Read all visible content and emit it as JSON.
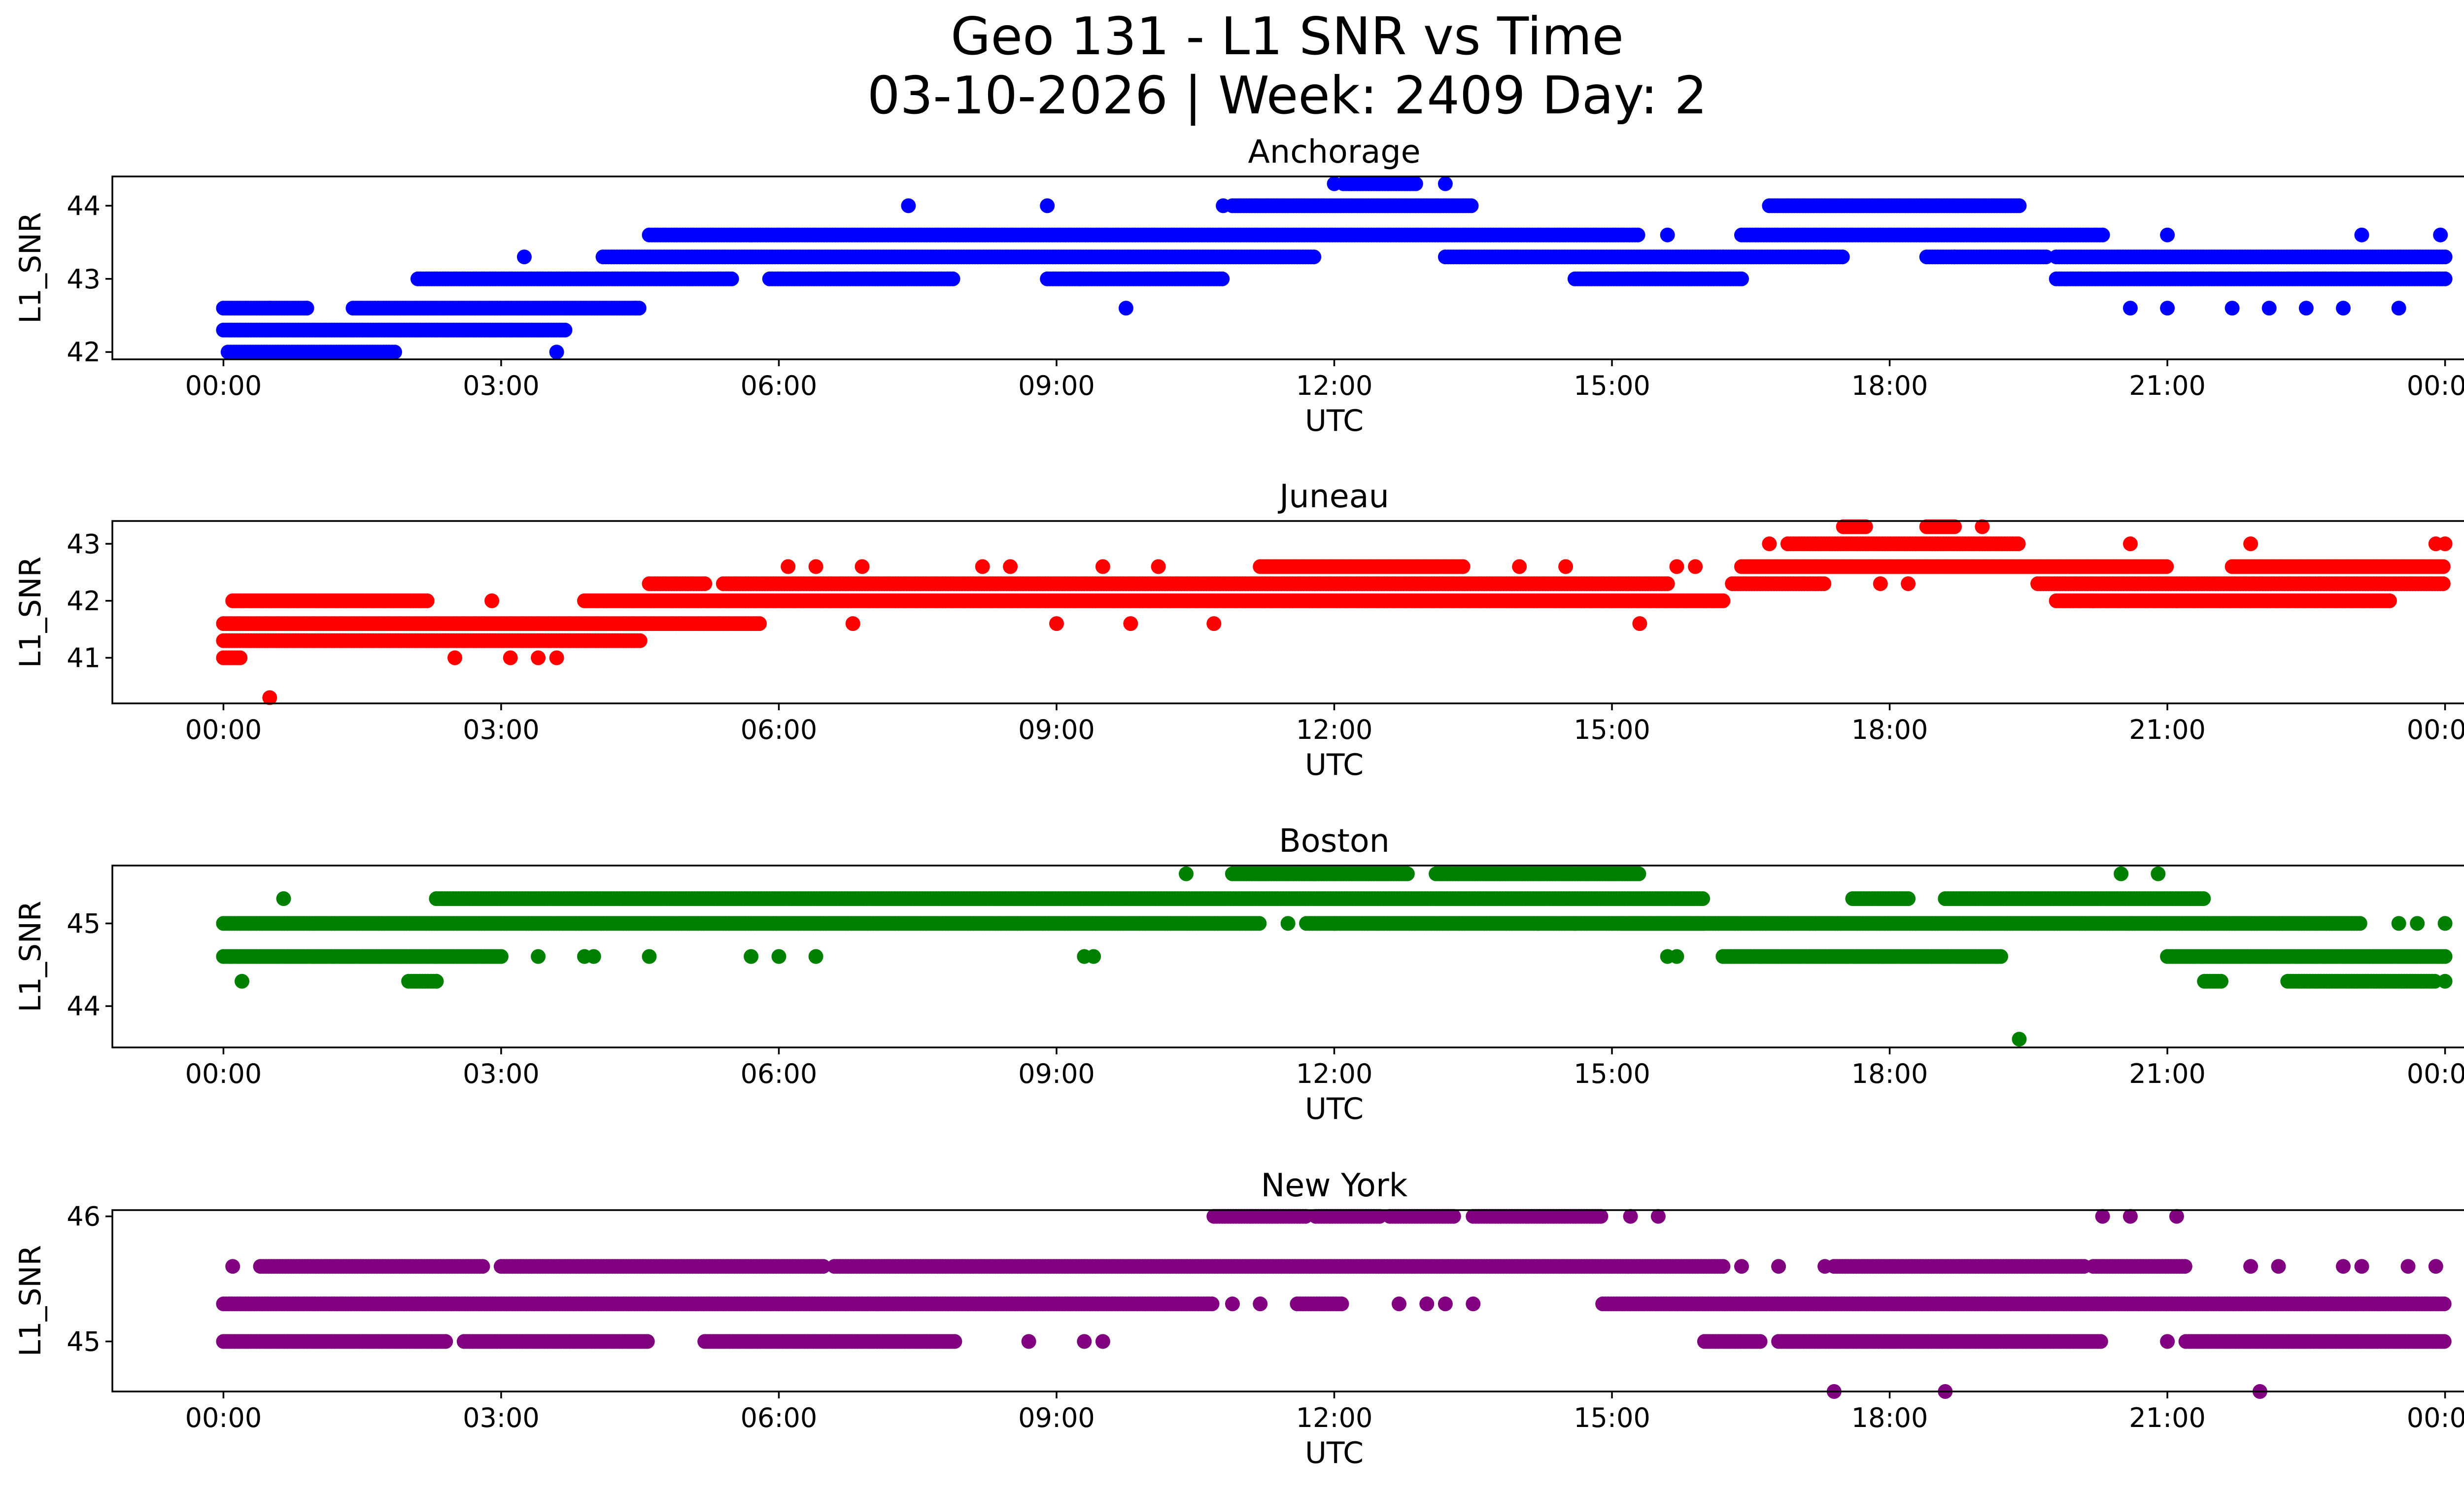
{
  "figure": {
    "title_line1": "Geo 131 - L1 SNR vs Time",
    "title_line2": "03-10-2026 | Week: 2409 Day: 2"
  },
  "chart_data": [
    {
      "type": "scatter",
      "title": "Anchorage",
      "xlabel": "UTC",
      "ylabel": "L1_SNR",
      "color": "#0000ff",
      "xlim": [
        -1.2,
        25.2
      ],
      "ylim": [
        41.9,
        44.4
      ],
      "x_ticks": [
        0,
        3,
        6,
        9,
        12,
        15,
        18,
        21,
        24
      ],
      "x_tick_labels": [
        "00:00",
        "03:00",
        "06:00",
        "09:00",
        "12:00",
        "15:00",
        "18:00",
        "21:00",
        "00:00"
      ],
      "y_ticks": [
        42,
        43,
        44
      ],
      "y_tick_labels": [
        "42",
        "43",
        "44"
      ],
      "bands": [
        {
          "y": 42.0,
          "ranges": [
            [
              0.05,
              1.85
            ]
          ]
        },
        {
          "y": 42.3,
          "ranges": [
            [
              0,
              3.7
            ]
          ]
        },
        {
          "y": 42.6,
          "ranges": [
            [
              0,
              0.9
            ],
            [
              1.4,
              4.5
            ]
          ]
        },
        {
          "y": 43.0,
          "ranges": [
            [
              2.1,
              5.5
            ],
            [
              5.9,
              7.9
            ],
            [
              8.9,
              10.8
            ],
            [
              14.6,
              16.4
            ],
            [
              19.8,
              24.0
            ]
          ]
        },
        {
          "y": 43.3,
          "ranges": [
            [
              4.1,
              11.8
            ],
            [
              13.2,
              17.5
            ],
            [
              18.4,
              19.7
            ],
            [
              19.8,
              24.0
            ]
          ]
        },
        {
          "y": 43.6,
          "ranges": [
            [
              4.6,
              15.3
            ],
            [
              16.4,
              20.3
            ]
          ]
        },
        {
          "y": 44.0,
          "ranges": [
            [
              10.9,
              13.5
            ],
            [
              16.7,
              19.4
            ]
          ]
        },
        {
          "y": 44.3,
          "ranges": [
            [
              12.1,
              12.9
            ]
          ]
        }
      ],
      "points": [
        [
          0.5,
          42.6
        ],
        [
          0.9,
          42.6
        ],
        [
          3.25,
          43.3
        ],
        [
          3.6,
          42.0
        ],
        [
          4.45,
          42.6
        ],
        [
          7.4,
          44.0
        ],
        [
          8.9,
          44.0
        ],
        [
          9.25,
          43.0
        ],
        [
          9.75,
          42.6
        ],
        [
          10.8,
          44.0
        ],
        [
          12.0,
          44.3
        ],
        [
          13.2,
          44.3
        ],
        [
          20.6,
          42.6
        ],
        [
          21.0,
          42.6
        ],
        [
          21.0,
          43.6
        ],
        [
          22.1,
          42.6
        ],
        [
          23.1,
          43.6
        ],
        [
          23.5,
          42.6
        ],
        [
          23.95,
          43.6
        ],
        [
          16.2,
          43.3
        ],
        [
          15.6,
          43.6
        ],
        [
          17.3,
          43.3
        ],
        [
          18.7,
          43.3
        ],
        [
          21.7,
          42.6
        ],
        [
          22.5,
          42.6
        ],
        [
          22.9,
          42.6
        ]
      ]
    },
    {
      "type": "scatter",
      "title": "Juneau",
      "xlabel": "UTC",
      "ylabel": "L1_SNR",
      "color": "#ff0000",
      "xlim": [
        -1.2,
        25.2
      ],
      "ylim": [
        40.2,
        43.4
      ],
      "x_ticks": [
        0,
        3,
        6,
        9,
        12,
        15,
        18,
        21,
        24
      ],
      "x_tick_labels": [
        "00:00",
        "03:00",
        "06:00",
        "09:00",
        "12:00",
        "15:00",
        "18:00",
        "21:00",
        "00:00"
      ],
      "y_ticks": [
        41,
        42,
        43
      ],
      "y_tick_labels": [
        "41",
        "42",
        "43"
      ],
      "bands": [
        {
          "y": 41.0,
          "ranges": [
            [
              0,
              0.2
            ]
          ]
        },
        {
          "y": 41.3,
          "ranges": [
            [
              0,
              4.5
            ]
          ]
        },
        {
          "y": 41.6,
          "ranges": [
            [
              0,
              5.8
            ]
          ]
        },
        {
          "y": 42.0,
          "ranges": [
            [
              0.1,
              2.2
            ],
            [
              3.9,
              16.2
            ],
            [
              19.8,
              23.4
            ]
          ]
        },
        {
          "y": 42.3,
          "ranges": [
            [
              4.6,
              5.2
            ],
            [
              5.4,
              15.6
            ],
            [
              16.3,
              17.3
            ],
            [
              19.6,
              24.0
            ]
          ]
        },
        {
          "y": 42.6,
          "ranges": [
            [
              11.2,
              13.4
            ],
            [
              16.4,
              21.0
            ],
            [
              21.7,
              24.0
            ]
          ]
        },
        {
          "y": 43.0,
          "ranges": [
            [
              16.9,
              19.4
            ]
          ]
        },
        {
          "y": 43.3,
          "ranges": [
            [
              17.5,
              17.75
            ],
            [
              18.4,
              18.7
            ]
          ]
        }
      ],
      "points": [
        [
          0.5,
          40.3
        ],
        [
          2.5,
          41.0
        ],
        [
          3.1,
          41.0
        ],
        [
          3.4,
          41.0
        ],
        [
          3.6,
          41.0
        ],
        [
          2.9,
          42.0
        ],
        [
          6.1,
          42.6
        ],
        [
          6.4,
          42.6
        ],
        [
          6.8,
          41.6
        ],
        [
          6.9,
          42.6
        ],
        [
          8.2,
          42.6
        ],
        [
          8.5,
          42.6
        ],
        [
          9.0,
          41.6
        ],
        [
          9.5,
          42.6
        ],
        [
          9.8,
          41.6
        ],
        [
          10.1,
          42.6
        ],
        [
          10.7,
          41.6
        ],
        [
          14.0,
          42.6
        ],
        [
          14.5,
          42.6
        ],
        [
          15.3,
          41.6
        ],
        [
          15.7,
          42.6
        ],
        [
          15.9,
          42.6
        ],
        [
          16.7,
          43.0
        ],
        [
          19.0,
          43.3
        ],
        [
          20.6,
          43.0
        ],
        [
          21.9,
          43.0
        ],
        [
          20.2,
          42.0
        ],
        [
          21.1,
          42.0
        ],
        [
          23.9,
          43.0
        ],
        [
          24.0,
          43.0
        ],
        [
          17.9,
          42.3
        ],
        [
          18.2,
          42.3
        ]
      ]
    },
    {
      "type": "scatter",
      "title": "Boston",
      "xlabel": "UTC",
      "ylabel": "L1_SNR",
      "color": "#008000",
      "xlim": [
        -1.2,
        25.2
      ],
      "ylim": [
        43.5,
        45.7
      ],
      "x_ticks": [
        0,
        3,
        6,
        9,
        12,
        15,
        18,
        21,
        24
      ],
      "x_tick_labels": [
        "00:00",
        "03:00",
        "06:00",
        "09:00",
        "12:00",
        "15:00",
        "18:00",
        "21:00",
        "00:00"
      ],
      "y_ticks": [
        44,
        45
      ],
      "y_tick_labels": [
        "44",
        "45"
      ],
      "bands": [
        {
          "y": 44.3,
          "ranges": [
            [
              2.0,
              2.3
            ],
            [
              21.4,
              21.6
            ],
            [
              22.3,
              23.9
            ]
          ]
        },
        {
          "y": 44.6,
          "ranges": [
            [
              0,
              3.0
            ],
            [
              16.2,
              19.2
            ],
            [
              21.0,
              24.0
            ]
          ]
        },
        {
          "y": 45.0,
          "ranges": [
            [
              0,
              11.2
            ],
            [
              11.7,
              16.0
            ],
            [
              15.1,
              23.1
            ]
          ]
        },
        {
          "y": 45.3,
          "ranges": [
            [
              2.3,
              16.0
            ],
            [
              17.6,
              18.2
            ],
            [
              18.6,
              21.4
            ]
          ]
        },
        {
          "y": 45.6,
          "ranges": [
            [
              10.9,
              12.8
            ],
            [
              13.1,
              15.3
            ]
          ]
        }
      ],
      "points": [
        [
          0.2,
          44.3
        ],
        [
          0.65,
          45.3
        ],
        [
          2.3,
          44.3
        ],
        [
          3.4,
          44.6
        ],
        [
          3.9,
          44.6
        ],
        [
          4.0,
          44.6
        ],
        [
          4.6,
          44.6
        ],
        [
          5.7,
          44.6
        ],
        [
          6.0,
          44.6
        ],
        [
          6.4,
          44.6
        ],
        [
          9.3,
          44.6
        ],
        [
          9.4,
          44.6
        ],
        [
          10.4,
          45.6
        ],
        [
          15.6,
          44.6
        ],
        [
          15.7,
          44.6
        ],
        [
          19.4,
          43.6
        ],
        [
          20.5,
          45.6
        ],
        [
          20.9,
          45.6
        ],
        [
          23.5,
          45.0
        ],
        [
          23.7,
          45.0
        ],
        [
          24.0,
          45.0
        ],
        [
          24.0,
          44.3
        ],
        [
          11.5,
          45.0
        ],
        [
          12.0,
          45.0
        ],
        [
          14.2,
          45.0
        ],
        [
          14.6,
          45.0
        ]
      ]
    },
    {
      "type": "scatter",
      "title": "New York",
      "xlabel": "UTC",
      "ylabel": "L1_SNR",
      "color": "#800080",
      "xlim": [
        -1.2,
        25.2
      ],
      "ylim": [
        44.6,
        46.05
      ],
      "x_ticks": [
        0,
        3,
        6,
        9,
        12,
        15,
        18,
        21,
        24
      ],
      "x_tick_labels": [
        "00:00",
        "03:00",
        "06:00",
        "09:00",
        "12:00",
        "15:00",
        "18:00",
        "21:00",
        "00:00"
      ],
      "y_ticks": [
        45,
        46
      ],
      "y_tick_labels": [
        "45",
        "46"
      ],
      "bands": [
        {
          "y": 45.0,
          "ranges": [
            [
              0,
              2.4
            ],
            [
              2.6,
              4.6
            ],
            [
              5.2,
              7.9
            ],
            [
              16.0,
              16.6
            ],
            [
              16.8,
              20.3
            ],
            [
              21.2,
              24.0
            ]
          ]
        },
        {
          "y": 45.3,
          "ranges": [
            [
              0,
              10.7
            ],
            [
              11.6,
              12.1
            ],
            [
              14.9,
              24.0
            ]
          ]
        },
        {
          "y": 45.6,
          "ranges": [
            [
              0.4,
              2.8
            ],
            [
              3.0,
              6.5
            ],
            [
              6.6,
              16.2
            ],
            [
              17.4,
              20.1
            ],
            [
              20.2,
              21.2
            ]
          ]
        },
        {
          "y": 46.0,
          "ranges": [
            [
              10.7,
              11.7
            ],
            [
              11.8,
              12.5
            ],
            [
              12.6,
              13.3
            ],
            [
              13.5,
              14.9
            ]
          ]
        }
      ],
      "points": [
        [
          0.1,
          45.6
        ],
        [
          8.7,
          45.0
        ],
        [
          9.3,
          45.0
        ],
        [
          9.5,
          45.0
        ],
        [
          10.9,
          45.3
        ],
        [
          11.2,
          45.3
        ],
        [
          12.7,
          45.3
        ],
        [
          13.0,
          45.3
        ],
        [
          13.2,
          45.3
        ],
        [
          13.5,
          45.3
        ],
        [
          15.2,
          46.0
        ],
        [
          15.5,
          46.0
        ],
        [
          16.4,
          45.6
        ],
        [
          16.8,
          45.6
        ],
        [
          17.3,
          45.6
        ],
        [
          17.4,
          44.6
        ],
        [
          18.6,
          44.6
        ],
        [
          20.6,
          46.0
        ],
        [
          21.1,
          46.0
        ],
        [
          21.0,
          45.0
        ],
        [
          22.0,
          44.6
        ],
        [
          22.2,
          45.6
        ],
        [
          21.9,
          45.6
        ],
        [
          22.9,
          45.6
        ],
        [
          23.1,
          45.6
        ],
        [
          23.6,
          45.6
        ],
        [
          23.9,
          45.6
        ],
        [
          20.3,
          46.0
        ]
      ]
    }
  ]
}
